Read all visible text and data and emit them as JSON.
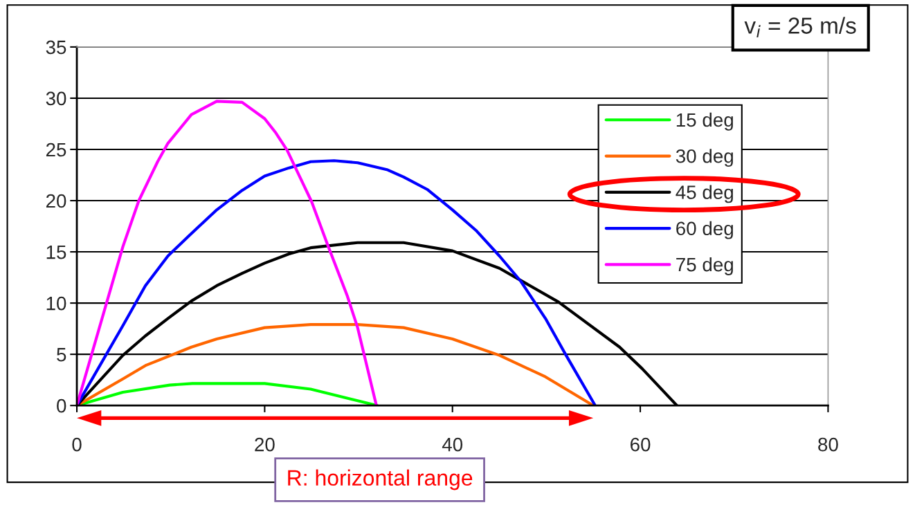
{
  "chart_data": {
    "type": "line",
    "series": [
      {
        "name": "15 deg",
        "color": "#00ff00",
        "x": [
          0,
          4.9,
          9.9,
          12.3,
          20,
          24.9,
          32
        ],
        "values": [
          0,
          1.3,
          2.0,
          2.15,
          2.15,
          1.6,
          0
        ]
      },
      {
        "name": "30 deg",
        "color": "#ff6600",
        "x": [
          0,
          4.9,
          7.3,
          12.2,
          14.9,
          20,
          24.9,
          29.9,
          34.8,
          40,
          45,
          49.9,
          55
        ],
        "values": [
          0,
          2.6,
          3.9,
          5.7,
          6.5,
          7.6,
          7.9,
          7.9,
          7.6,
          6.5,
          4.9,
          2.8,
          0
        ]
      },
      {
        "name": "45 deg",
        "color": "#000000",
        "x": [
          0,
          4.9,
          7.3,
          9.7,
          12.2,
          14.9,
          17.6,
          20,
          22.6,
          24.9,
          29.9,
          34.8,
          40,
          45,
          51.3,
          57.8,
          60.2,
          63.9
        ],
        "values": [
          0,
          4.9,
          6.8,
          8.5,
          10.2,
          11.7,
          12.9,
          13.9,
          14.8,
          15.4,
          15.9,
          15.9,
          15.1,
          13.4,
          10.1,
          5.7,
          3.6,
          0
        ]
      },
      {
        "name": "60 deg",
        "color": "#0000ff",
        "x": [
          0,
          4.9,
          7.3,
          9.7,
          12.2,
          14.9,
          17.6,
          20,
          22.6,
          24.9,
          27.4,
          29.9,
          33.1,
          34.8,
          37.3,
          40,
          42.5,
          45,
          47.3,
          49.9,
          52.1,
          55.2
        ],
        "values": [
          0,
          7.8,
          11.7,
          14.6,
          16.8,
          19.1,
          21.0,
          22.4,
          23.2,
          23.8,
          23.9,
          23.7,
          23.0,
          22.3,
          21.1,
          19.1,
          17.1,
          14.6,
          12.1,
          8.5,
          4.9,
          0
        ]
      },
      {
        "name": "75 deg",
        "color": "#ff00ff",
        "x": [
          0,
          2.4,
          4.9,
          6.6,
          8.6,
          9.7,
          12.2,
          14.9,
          17.6,
          20,
          21.2,
          22.4,
          25,
          26.7,
          28.8,
          29.9,
          31.9
        ],
        "values": [
          0,
          7.6,
          15.5,
          20.0,
          23.8,
          25.6,
          28.4,
          29.7,
          29.6,
          28.0,
          26.6,
          24.9,
          19.9,
          15.7,
          10.7,
          7.6,
          0
        ]
      }
    ],
    "xlim": [
      0,
      80
    ],
    "xticks": [
      0,
      20,
      40,
      60,
      80
    ],
    "ylim": [
      0,
      35
    ],
    "yticks": [
      0,
      5,
      10,
      15,
      20,
      25,
      30,
      35
    ],
    "grid": "y",
    "legend": "top right",
    "marker": "none",
    "line_style": "solid",
    "annotations": [
      "v$_{i}$ = 25 m/s",
      "R: horizontal range"
    ]
  }
}
